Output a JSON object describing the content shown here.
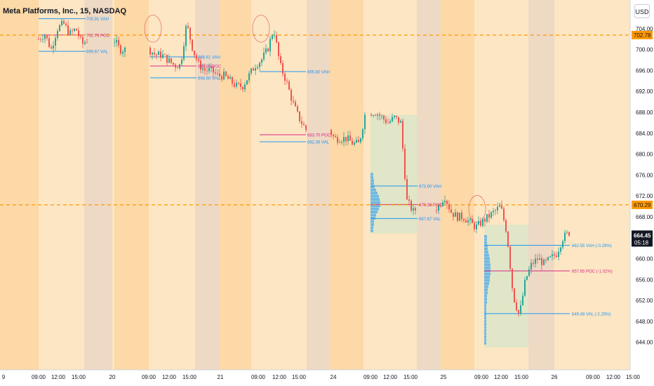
{
  "header": {
    "title": "Meta Platforms, Inc., 15, NASDAQ",
    "currency": "USD"
  },
  "price_axis": {
    "current_price": "664.45",
    "countdown": "05:18",
    "marker_high": "702.78",
    "marker_mid": "670.29"
  },
  "colors": {
    "background_session": "#fde6c3",
    "background_premarket": "#fcd9a6",
    "background_overnight": "#eed9c4",
    "up_candle": "#26a69a",
    "down_candle": "#ef5350",
    "vah_val_line": "#2196f3",
    "poc_line": "#d62b86",
    "level_line": "#ff9800",
    "current_label": "#131722"
  },
  "chart_data": {
    "type": "candlestick",
    "title": "Meta Platforms, Inc., 15, NASDAQ",
    "symbol": "META",
    "interval": "15",
    "exchange": "NASDAQ",
    "currency": "USD",
    "ylim": [
      641,
      706
    ],
    "yticks": [
      704,
      700,
      696,
      692,
      688,
      684,
      680,
      676,
      672,
      668,
      664,
      660,
      656,
      652,
      648,
      644
    ],
    "ytick_labels": [
      "704.00",
      "700.00",
      "696.00",
      "692.00",
      "688.00",
      "684.00",
      "680.00",
      "676.00",
      "672.00",
      "668.00",
      "664.00",
      "660.00",
      "656.00",
      "652.00",
      "648.00",
      "644.00"
    ],
    "xticks": [
      "9",
      "09:00",
      "12:00",
      "15:00",
      "20",
      "09:00",
      "12:00",
      "15:00",
      "21",
      "09:00",
      "12:00",
      "15:00",
      "24",
      "09:00",
      "12:00",
      "15:00",
      "25",
      "09:00",
      "12:00",
      "15:00",
      "26",
      "09:00",
      "12:00",
      "15:00"
    ],
    "horizontal_levels": [
      {
        "price": 702.78,
        "label": "702.78"
      },
      {
        "price": 670.29,
        "label": "670.29"
      }
    ],
    "last_price": 664.45,
    "countdown": "05:18",
    "volume_profile_labels": [
      {
        "text": "705.91 VAH",
        "type": "vah"
      },
      {
        "text": "702.79 POC",
        "type": "poc"
      },
      {
        "text": "699.67 VAL",
        "type": "val"
      },
      {
        "text": "698.61 VAH",
        "type": "vah"
      },
      {
        "text": "696.86 POC",
        "type": "poc"
      },
      {
        "text": "694.60 VAL",
        "type": "val"
      },
      {
        "text": "695.80 VAH",
        "type": "vah"
      },
      {
        "text": "683.70 POC",
        "type": "poc"
      },
      {
        "text": "682.36 VAL",
        "type": "val"
      },
      {
        "text": "673.90 VAH",
        "type": "vah"
      },
      {
        "text": "670.36 POC",
        "type": "poc"
      },
      {
        "text": "667.67 VAL",
        "type": "val"
      },
      {
        "text": "662.55 VAH (-0.29%)",
        "type": "vah"
      },
      {
        "text": "657.65 POC (-1.02%)",
        "type": "poc"
      },
      {
        "text": "649.48 VAL (-2.25%)",
        "type": "val"
      }
    ],
    "anchor_prices": [
      702,
      703,
      700,
      704,
      705,
      703,
      704,
      701,
      702,
      700,
      700,
      699,
      699,
      698,
      697,
      697,
      705,
      700,
      697,
      696,
      696,
      695,
      695,
      694,
      693,
      693,
      695,
      697,
      698,
      700,
      704,
      697,
      694,
      690,
      687,
      685,
      683,
      683,
      683,
      682,
      682,
      688,
      688,
      687,
      686,
      687,
      686,
      671,
      669,
      670,
      672,
      669,
      668,
      668,
      667,
      666,
      667,
      668,
      669,
      670,
      665,
      653,
      649,
      656,
      659,
      660,
      659,
      660,
      661,
      664,
      665
    ]
  }
}
